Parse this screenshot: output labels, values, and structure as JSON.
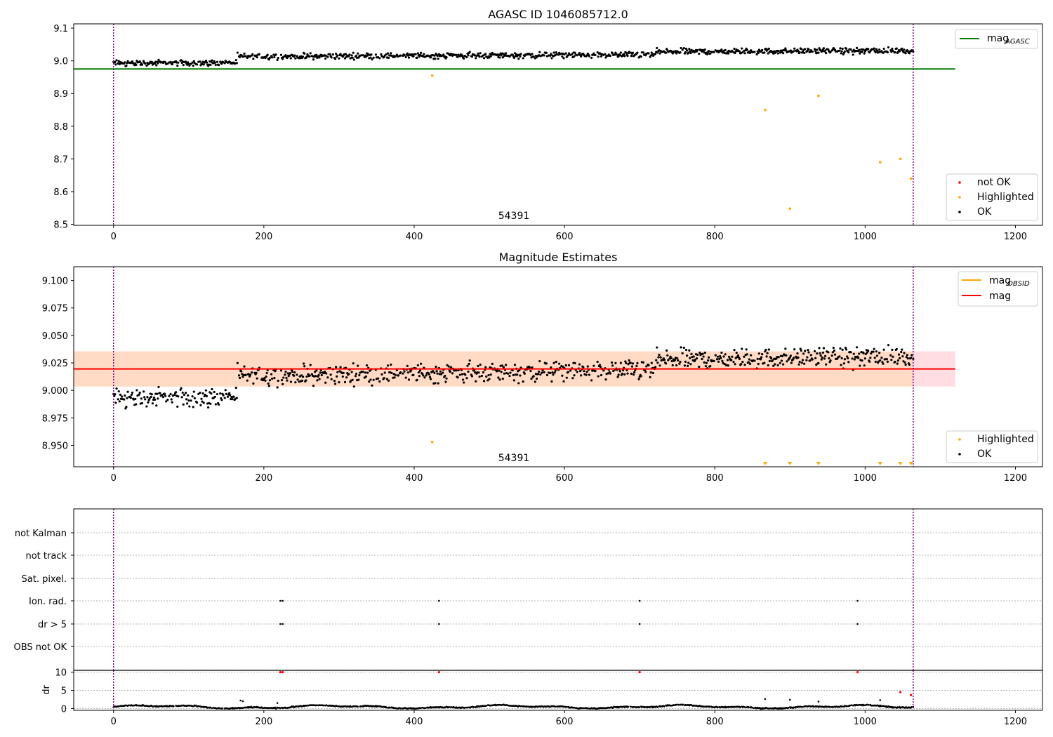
{
  "chart_data": [
    {
      "id": "top",
      "type": "scatter",
      "title": "AGASC ID 1046085712.0",
      "xlim": [
        -53,
        1236
      ],
      "ylim": [
        8.497,
        9.113
      ],
      "xticks": [
        0,
        200,
        400,
        600,
        800,
        1000,
        1200
      ],
      "yticks": [
        8.5,
        8.6,
        8.7,
        8.8,
        8.9,
        9.0,
        9.1
      ],
      "ytick_format": 1,
      "grid": false,
      "vlines": [
        0,
        1064
      ],
      "annotation": {
        "text": "54391",
        "x": 530,
        "y": 8.525
      },
      "hline": {
        "name": "mag_AGASC",
        "y": 8.975,
        "x0": -53,
        "x1": 1120,
        "color": "#008000"
      },
      "series": [
        {
          "name": "not OK",
          "color": "#ff0000",
          "points": []
        },
        {
          "name": "Highlighted",
          "color": "#ffa500",
          "points": [
            [
              424,
              8.955
            ],
            [
              867,
              8.85
            ],
            [
              900,
              8.548
            ],
            [
              938,
              8.893
            ],
            [
              1020,
              8.69
            ],
            [
              1047,
              8.7
            ],
            [
              1061,
              8.64
            ]
          ]
        },
        {
          "name": "OK",
          "color": "#000000",
          "trend": "mag_trend"
        }
      ],
      "legend_upper": {
        "position": "top-right",
        "entries": [
          {
            "base": "mag",
            "sub": "AGASC",
            "color": "#008000"
          }
        ]
      },
      "legend_lower": {
        "position": "bottom-right",
        "entries": [
          {
            "label": "not OK",
            "color": "#ff0000"
          },
          {
            "label": "Highlighted",
            "color": "#ffa500"
          },
          {
            "label": "OK",
            "color": "#000000"
          }
        ]
      }
    },
    {
      "id": "middle",
      "type": "scatter",
      "title": "Magnitude Estimates",
      "xlim": [
        -53,
        1236
      ],
      "ylim": [
        8.9305,
        9.1125
      ],
      "xticks": [
        0,
        200,
        400,
        600,
        800,
        1000,
        1200
      ],
      "yticks": [
        8.95,
        8.975,
        9.0,
        9.025,
        9.05,
        9.075,
        9.1
      ],
      "ytick_format": 3,
      "grid": false,
      "vlines": [
        0,
        1064
      ],
      "annotation": {
        "text": "54391",
        "x": 530,
        "y": 8.9345
      },
      "band_outer": {
        "y0": 9.0035,
        "y1": 9.0355,
        "x0": -53,
        "x1": 1120,
        "color": "#ffdde3"
      },
      "band_inner": {
        "y0": 9.0035,
        "y1": 9.0355,
        "x0": -53,
        "x1": 1064,
        "color": "#ffdac5"
      },
      "hline": {
        "name": "mag",
        "y": 9.0195,
        "x0": -53,
        "x1": 1120,
        "color": "#ff0000"
      },
      "obsid_line": {
        "name": "mag_OBSID",
        "color": "#ffa500"
      },
      "series": [
        {
          "name": "Highlighted",
          "color": "#ffa500",
          "points": [
            [
              424,
              8.953
            ]
          ],
          "out_of_range_x": [
            867,
            900,
            938,
            1020,
            1047,
            1061
          ]
        },
        {
          "name": "OK",
          "color": "#000000",
          "trend": "mag_trend"
        }
      ],
      "legend_upper": {
        "position": "top-right",
        "entries": [
          {
            "base": "mag",
            "sub": "OBSID",
            "color": "#ffa500"
          },
          {
            "base": "mag",
            "sub": "",
            "color": "#ff0000"
          }
        ]
      },
      "legend_lower": {
        "position": "bottom-right",
        "entries": [
          {
            "label": "Highlighted",
            "color": "#ffa500"
          },
          {
            "label": "OK",
            "color": "#000000"
          }
        ]
      }
    },
    {
      "id": "flags",
      "type": "scatter",
      "xlim": [
        -53,
        1236
      ],
      "categories": [
        "not Kalman",
        "not track",
        "Sat. pixel.",
        "Ion. rad.",
        "dr > 5",
        "OBS not OK"
      ],
      "grid": true,
      "vlines": [
        0,
        1064
      ],
      "flag_points": [
        {
          "category": "Ion. rad.",
          "x": [
            222,
            225,
            433,
            700,
            990
          ]
        },
        {
          "category": "dr > 5",
          "x": [
            222,
            225,
            433,
            700,
            990
          ]
        }
      ]
    },
    {
      "id": "dr",
      "type": "scatter",
      "ylabel": "dr",
      "xlim": [
        -53,
        1236
      ],
      "ylim": [
        -0.5,
        10.5
      ],
      "xticks": [
        0,
        200,
        400,
        600,
        800,
        1000,
        1200
      ],
      "yticks": [
        0,
        5,
        10
      ],
      "grid": true,
      "vlines": [
        0,
        1064
      ],
      "series": [
        {
          "name": "not OK",
          "color": "#ff0000",
          "points": [
            [
              222,
              10
            ],
            [
              225,
              10
            ],
            [
              433,
              10
            ],
            [
              700,
              10
            ],
            [
              990,
              10
            ],
            [
              1047,
              4.5
            ],
            [
              1061,
              3.7
            ]
          ]
        },
        {
          "name": "Highlighted",
          "color": "#000000",
          "points": [
            [
              867,
              2.6
            ],
            [
              900,
              2.4
            ],
            [
              938,
              1.9
            ],
            [
              1020,
              2.3
            ],
            [
              169,
              2.2
            ],
            [
              172,
              2.0
            ],
            [
              218,
              1.5
            ]
          ]
        },
        {
          "name": "OK",
          "color": "#000000",
          "trend": "dr_trend"
        }
      ]
    }
  ]
}
